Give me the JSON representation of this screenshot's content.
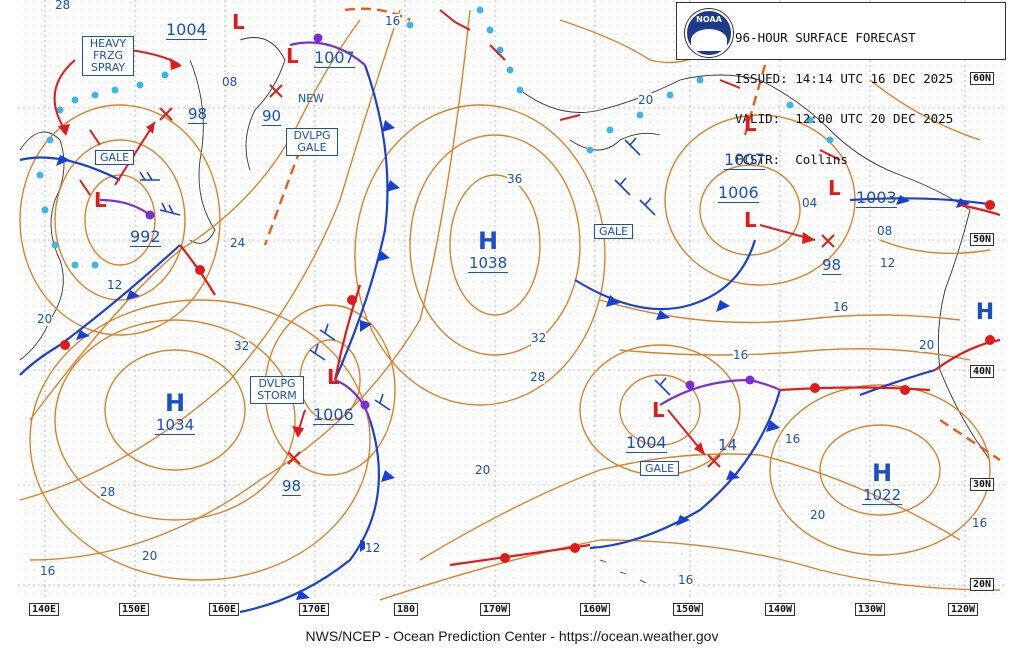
{
  "header": {
    "title": "96-HOUR SURFACE FORECAST",
    "issued": "ISSUED: 14:14 UTC 16 DEC 2025",
    "valid": "VALID:  12:00 UTC 20 DEC 2025",
    "forecaster": "FCSTR:  Collins",
    "logo_text": "NOAA"
  },
  "footer": {
    "credit": "NWS/NCEP - Ocean Prediction Center - https://ocean.weather.gov"
  },
  "lon_labels": [
    "140E",
    "150E",
    "160E",
    "170E",
    "180",
    "170W",
    "160W",
    "150W",
    "140W",
    "130W",
    "120W"
  ],
  "lat_labels": [
    "60N",
    "50N",
    "40N",
    "30N",
    "20N"
  ],
  "pressure_systems": [
    {
      "type": "H",
      "pressure": "1038"
    },
    {
      "type": "H",
      "pressure": "1034"
    },
    {
      "type": "H",
      "pressure": "1022"
    },
    {
      "type": "H",
      "pressure": ""
    },
    {
      "type": "L",
      "pressure": "1004"
    },
    {
      "type": "L",
      "pressure": "1007"
    },
    {
      "type": "L",
      "pressure": "992"
    },
    {
      "type": "L",
      "pressure": "1006"
    },
    {
      "type": "L",
      "pressure": "1007"
    },
    {
      "type": "L",
      "pressure": "1006"
    },
    {
      "type": "L",
      "pressure": "1003"
    },
    {
      "type": "L",
      "pressure": "1004"
    }
  ],
  "forecast_positions": [
    "98",
    "90",
    "98",
    "98",
    "14"
  ],
  "isobar_labels": [
    "28",
    "16",
    "08",
    "24",
    "12",
    "20",
    "32",
    "36",
    "32",
    "28",
    "20",
    "28",
    "20",
    "16",
    "12",
    "16",
    "16",
    "20",
    "16",
    "20",
    "16",
    "16",
    "12",
    "04",
    "08",
    "20"
  ],
  "warnings": [
    "HEAVY",
    "FRZG",
    "SPRAY",
    "GALE",
    "DVLPG",
    "GALE",
    "GALE",
    "DVLPG",
    "STORM",
    "GALE"
  ],
  "annotations": [
    "NEW"
  ],
  "colors": {
    "isobar": "#d9822b",
    "front_cold": "#1a3fd6",
    "front_warm": "#e01b1b",
    "front_occluded": "#7b2fd0",
    "low": "#e01b1b",
    "high": "#1a4fc8",
    "text_blue": "#1a4fb8",
    "ice": "#41b4e6"
  }
}
